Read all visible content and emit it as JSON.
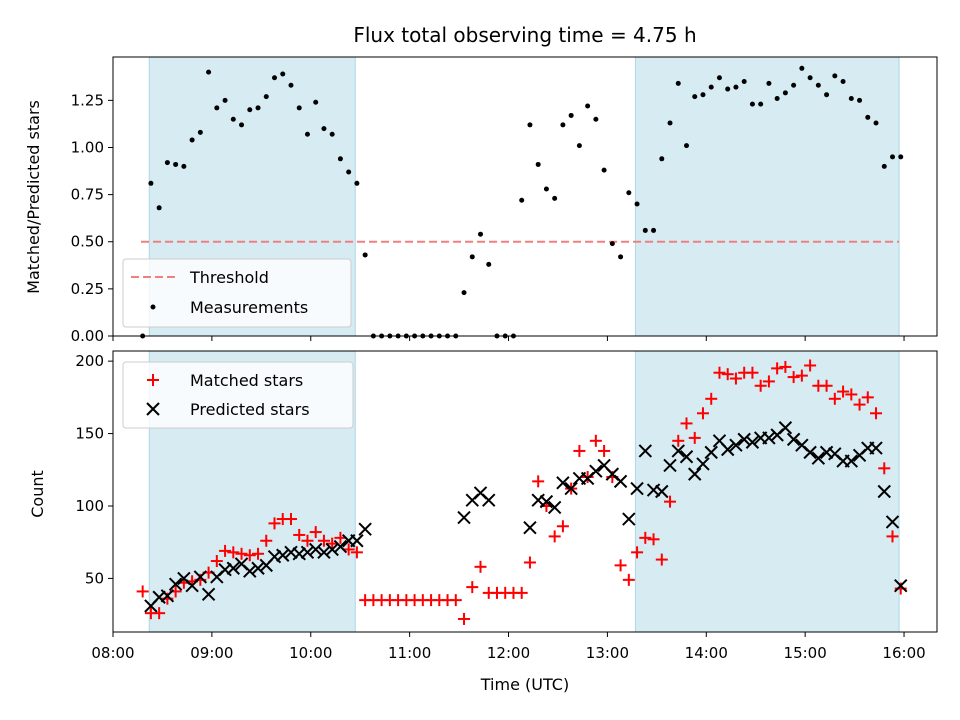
{
  "chart_data": [
    {
      "type": "scatter",
      "title": "Flux total observing time = 4.75 h",
      "xlabel": "",
      "ylabel": "Matched/Predicted stars",
      "xlim": [
        "08:00",
        "16:20"
      ],
      "ylim": [
        0,
        1.48
      ],
      "yticks": [
        "0.00",
        "0.25",
        "0.50",
        "0.75",
        "1.00",
        "1.25"
      ],
      "ytick_values": [
        0,
        0.25,
        0.5,
        0.75,
        1.0,
        1.25
      ],
      "grid": false,
      "legend_position": "lower-left",
      "shaded_intervals": [
        [
          "08:22",
          "10:27"
        ],
        [
          "13:17",
          "15:57"
        ]
      ],
      "threshold": {
        "name": "Threshold",
        "y": 0.5,
        "x_from": "08:17",
        "x_to": "15:57"
      },
      "series": [
        {
          "name": "Measurements",
          "x": [
            "08:18",
            "08:23",
            "08:28",
            "08:33",
            "08:38",
            "08:43",
            "08:48",
            "08:53",
            "08:58",
            "09:03",
            "09:08",
            "09:13",
            "09:18",
            "09:23",
            "09:28",
            "09:33",
            "09:38",
            "09:43",
            "09:48",
            "09:53",
            "09:58",
            "10:03",
            "10:08",
            "10:13",
            "10:18",
            "10:23",
            "10:28",
            "10:33",
            "10:38",
            "10:43",
            "10:48",
            "10:53",
            "10:58",
            "11:03",
            "11:08",
            "11:13",
            "11:18",
            "11:23",
            "11:28",
            "11:33",
            "11:38",
            "11:43",
            "11:48",
            "11:53",
            "11:58",
            "12:03",
            "12:08",
            "12:13",
            "12:18",
            "12:23",
            "12:28",
            "12:33",
            "12:38",
            "12:43",
            "12:48",
            "12:53",
            "12:58",
            "13:03",
            "13:08",
            "13:13",
            "13:18",
            "13:23",
            "13:28",
            "13:33",
            "13:38",
            "13:43",
            "13:48",
            "13:53",
            "13:58",
            "14:03",
            "14:08",
            "14:13",
            "14:18",
            "14:23",
            "14:28",
            "14:33",
            "14:38",
            "14:43",
            "14:48",
            "14:53",
            "14:58",
            "15:03",
            "15:08",
            "15:13",
            "15:18",
            "15:23",
            "15:28",
            "15:33",
            "15:38",
            "15:43",
            "15:48",
            "15:53",
            "15:58"
          ],
          "y": [
            0.0,
            0.81,
            0.68,
            0.92,
            0.91,
            0.9,
            1.04,
            1.08,
            1.4,
            1.21,
            1.25,
            1.15,
            1.12,
            1.2,
            1.21,
            1.27,
            1.37,
            1.39,
            1.33,
            1.21,
            1.07,
            1.24,
            1.1,
            1.07,
            0.94,
            0.87,
            0.81,
            0.43,
            0.0,
            0.0,
            0.0,
            0.0,
            0.0,
            0.0,
            0.0,
            0.0,
            0.0,
            0.0,
            0.0,
            0.23,
            0.42,
            0.54,
            0.38,
            0.0,
            0.0,
            0.0,
            0.72,
            1.12,
            0.91,
            0.78,
            0.73,
            1.12,
            1.17,
            1.01,
            1.22,
            1.15,
            0.88,
            0.49,
            0.42,
            0.76,
            0.7,
            0.56,
            0.56,
            0.94,
            1.13,
            1.34,
            1.01,
            1.27,
            1.28,
            1.32,
            1.37,
            1.31,
            1.32,
            1.35,
            1.23,
            1.23,
            1.34,
            1.26,
            1.29,
            1.33,
            1.42,
            1.37,
            1.33,
            1.28,
            1.38,
            1.35,
            1.26,
            1.25,
            1.16,
            1.13,
            0.9,
            0.95,
            0.95
          ]
        }
      ]
    },
    {
      "type": "scatter",
      "title": "",
      "xlabel": "Time (UTC)",
      "ylabel": "Count",
      "xlim": [
        "08:00",
        "16:20"
      ],
      "ylim": [
        13,
        207
      ],
      "xticks": [
        "08:00",
        "09:00",
        "10:00",
        "11:00",
        "12:00",
        "13:00",
        "14:00",
        "15:00",
        "16:00"
      ],
      "yticks": [
        "50",
        "100",
        "150",
        "200"
      ],
      "ytick_values": [
        50,
        100,
        150,
        200
      ],
      "grid": false,
      "legend_position": "upper-left",
      "shaded_intervals": [
        [
          "08:22",
          "10:27"
        ],
        [
          "13:17",
          "15:57"
        ]
      ],
      "series": [
        {
          "name": "Matched stars",
          "color": "#ff0000",
          "marker": "+",
          "x": [
            "08:18",
            "08:23",
            "08:28",
            "08:33",
            "08:38",
            "08:43",
            "08:48",
            "08:53",
            "08:58",
            "09:03",
            "09:08",
            "09:13",
            "09:18",
            "09:23",
            "09:28",
            "09:33",
            "09:38",
            "09:43",
            "09:48",
            "09:53",
            "09:58",
            "10:03",
            "10:08",
            "10:13",
            "10:18",
            "10:23",
            "10:28",
            "10:33",
            "10:38",
            "10:43",
            "10:48",
            "10:53",
            "10:58",
            "11:03",
            "11:08",
            "11:13",
            "11:18",
            "11:23",
            "11:28",
            "11:33",
            "11:38",
            "11:43",
            "11:48",
            "11:53",
            "11:58",
            "12:03",
            "12:08",
            "12:13",
            "12:18",
            "12:23",
            "12:28",
            "12:33",
            "12:38",
            "12:43",
            "12:48",
            "12:53",
            "12:58",
            "13:03",
            "13:08",
            "13:13",
            "13:18",
            "13:23",
            "13:28",
            "13:33",
            "13:38",
            "13:43",
            "13:48",
            "13:53",
            "13:58",
            "14:03",
            "14:08",
            "14:13",
            "14:18",
            "14:23",
            "14:28",
            "14:33",
            "14:38",
            "14:43",
            "14:48",
            "14:53",
            "14:58",
            "15:03",
            "15:08",
            "15:13",
            "15:18",
            "15:23",
            "15:28",
            "15:33",
            "15:38",
            "15:43",
            "15:48",
            "15:53",
            "15:58"
          ],
          "y": [
            41,
            26,
            26,
            36,
            41,
            47,
            48,
            49,
            54,
            62,
            69,
            68,
            67,
            66,
            67,
            76,
            88,
            91,
            91,
            80,
            76,
            82,
            76,
            74,
            78,
            70,
            68,
            35,
            35,
            35,
            35,
            35,
            35,
            35,
            35,
            35,
            35,
            35,
            35,
            22,
            44,
            58,
            40,
            40,
            40,
            40,
            40,
            61,
            117,
            100,
            79,
            86,
            112,
            138,
            120,
            145,
            138,
            120,
            59,
            49,
            68,
            78,
            77,
            63,
            103,
            145,
            157,
            147,
            164,
            174,
            192,
            191,
            188,
            192,
            192,
            183,
            186,
            195,
            196,
            189,
            190,
            197,
            183,
            183,
            174,
            179,
            177,
            170,
            175,
            164,
            126,
            79,
            43
          ]
        },
        {
          "name": "Predicted stars",
          "color": "#000000",
          "marker": "x",
          "x": [
            "08:23",
            "08:28",
            "08:33",
            "08:38",
            "08:43",
            "08:48",
            "08:53",
            "08:58",
            "09:03",
            "09:08",
            "09:13",
            "09:18",
            "09:23",
            "09:28",
            "09:33",
            "09:38",
            "09:43",
            "09:48",
            "09:53",
            "09:58",
            "10:03",
            "10:08",
            "10:13",
            "10:18",
            "10:23",
            "10:28",
            "10:33",
            "11:33",
            "11:38",
            "11:43",
            "11:48",
            "12:13",
            "12:18",
            "12:23",
            "12:28",
            "12:33",
            "12:38",
            "12:43",
            "12:48",
            "12:53",
            "12:58",
            "13:03",
            "13:08",
            "13:13",
            "13:18",
            "13:23",
            "13:28",
            "13:33",
            "13:38",
            "13:43",
            "13:48",
            "13:53",
            "13:58",
            "14:03",
            "14:08",
            "14:13",
            "14:18",
            "14:23",
            "14:28",
            "14:33",
            "14:38",
            "14:43",
            "14:48",
            "14:53",
            "14:58",
            "15:03",
            "15:08",
            "15:13",
            "15:18",
            "15:23",
            "15:28",
            "15:33",
            "15:38",
            "15:43",
            "15:48",
            "15:53",
            "15:58"
          ],
          "y": [
            31,
            37,
            38,
            46,
            50,
            45,
            51,
            39,
            51,
            56,
            57,
            60,
            55,
            57,
            59,
            65,
            66,
            68,
            67,
            68,
            70,
            68,
            70,
            72,
            76,
            76,
            84,
            92,
            104,
            109,
            104,
            85,
            104,
            103,
            99,
            116,
            112,
            119,
            119,
            124,
            128,
            122,
            117,
            91,
            112,
            138,
            111,
            110,
            128,
            138,
            134,
            122,
            129,
            137,
            145,
            139,
            142,
            146,
            144,
            147,
            147,
            149,
            154,
            146,
            142,
            137,
            133,
            137,
            136,
            131,
            131,
            135,
            140,
            140,
            110,
            89,
            45
          ]
        }
      ]
    }
  ]
}
